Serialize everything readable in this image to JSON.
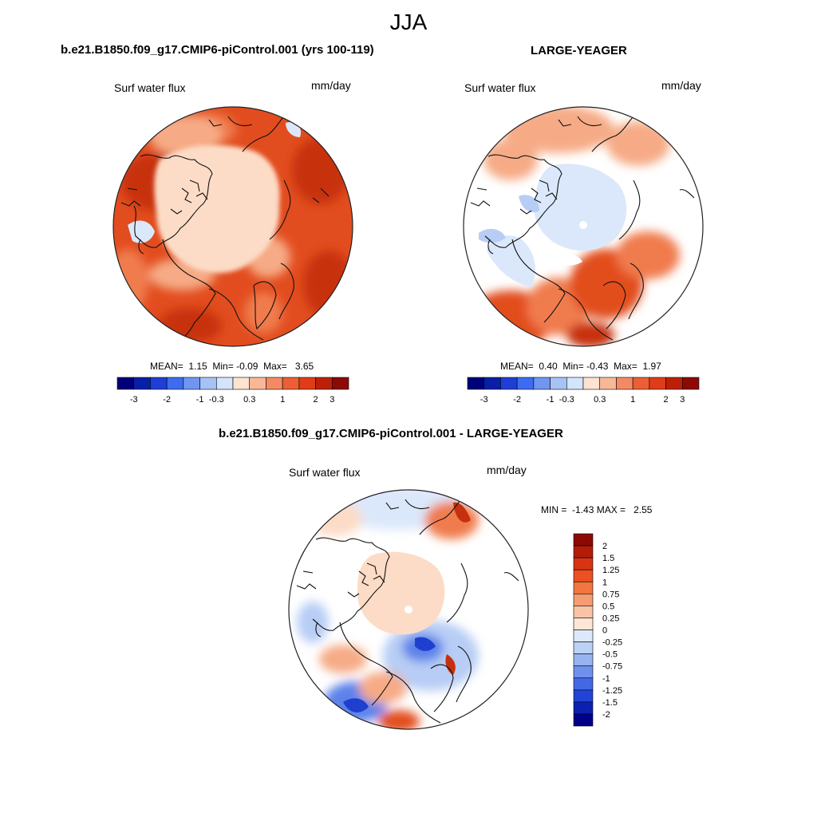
{
  "season": "JJA",
  "panels": [
    {
      "title": "b.e21.B1850.f09_g17.CMIP6-piControl.001 (yrs 100-119)",
      "variable": "Surf water flux",
      "units": "mm/day",
      "stats": {
        "mean_label": "MEAN=",
        "mean": "1.15",
        "min_label": "Min=",
        "min": "-0.09",
        "max_label": "Max=",
        "max": "3.65"
      }
    },
    {
      "title": "LARGE-YEAGER",
      "variable": "Surf water flux",
      "units": "mm/day",
      "stats": {
        "mean_label": "MEAN=",
        "mean": "0.40",
        "min_label": "Min=",
        "min": "-0.43",
        "max_label": "Max=",
        "max": "1.97"
      }
    },
    {
      "title": "b.e21.B1850.f09_g17.CMIP6-piControl.001 - LARGE-YEAGER",
      "variable": "Surf water flux",
      "units": "mm/day",
      "stats": {
        "min_label": "MIN =",
        "min": "-1.43",
        "max_label": "MAX =",
        "max": "2.55"
      }
    }
  ],
  "colorbar_main": {
    "ticks": [
      "-3",
      "-2",
      "-1",
      "-0.3",
      "0.3",
      "1",
      "2",
      "3"
    ],
    "colors": [
      "#00007a",
      "#0a1fa6",
      "#1e3fd6",
      "#3d6cf0",
      "#7096f2",
      "#a7c3f5",
      "#d4e4fb",
      "#fde3d0",
      "#f8b898",
      "#f38a64",
      "#ec5f34",
      "#e03c18",
      "#bd2009",
      "#8c0a03"
    ]
  },
  "colorbar_diff": {
    "labels": [
      "2",
      "1.5",
      "1.25",
      "1",
      "0.75",
      "0.5",
      "0.25",
      "0",
      "-0.25",
      "-0.5",
      "-0.75",
      "-1",
      "-1.25",
      "-1.5",
      "-2"
    ],
    "colors": [
      "#8c0a03",
      "#b51c08",
      "#d83412",
      "#ec5022",
      "#f2763f",
      "#f59c72",
      "#f9c4a6",
      "#fde6d6",
      "#dde9fb",
      "#bcd1f6",
      "#97b4f1",
      "#6f90eb",
      "#4468e4",
      "#2143d6",
      "#0c20b0",
      "#00008b"
    ]
  },
  "map_colors": {
    "ocean_land": "#ffffff",
    "deep_red": "#c7300e",
    "red": "#e24d1f",
    "orange": "#f07c4e",
    "salmon": "#f6ab86",
    "peach": "#fcdcc6",
    "pale_blue": "#dbe8fb",
    "light_blue": "#b7cdf5",
    "blue": "#5b82ea",
    "dark_blue": "#1f3fcf"
  }
}
